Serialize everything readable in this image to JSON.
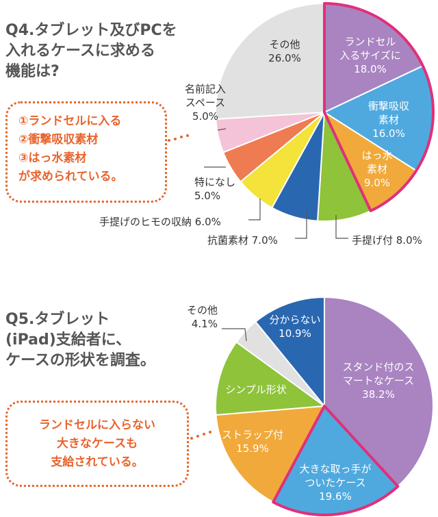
{
  "q4": {
    "title_lines": [
      "Q4.タブレット及びPCを",
      "入れるケースに求める",
      "機能は?"
    ],
    "callout_lines": [
      "①ランドセルに入る",
      "②衝撃吸収素材",
      "③はっ水素材",
      "が求められている。"
    ]
  },
  "q5": {
    "title_lines": [
      "Q5.タブレット",
      "(iPad)支給者に、",
      "ケースの形状を調査。"
    ],
    "callout_lines": [
      "ランドセルに入らない",
      "大きなケースも",
      "支給されている。"
    ]
  },
  "chart_data": [
    {
      "type": "pie",
      "highlight_color": "#e0307a",
      "slices": [
        {
          "label": "ランドセル 入るサイズに",
          "label_lines": [
            "ランドセル",
            "入るサイズに"
          ],
          "value_text": "18.0%",
          "value": 18.0,
          "color": "#a984c1",
          "highlighted": true
        },
        {
          "label": "衝撃吸収 素材",
          "label_lines": [
            "衝撃吸収",
            "素材"
          ],
          "value_text": "16.0%",
          "value": 16.0,
          "color": "#4fa9de",
          "highlighted": true
        },
        {
          "label": "はっ水 素材",
          "label_lines": [
            "はっ水",
            "素材"
          ],
          "value_text": "9.0%",
          "value": 9.0,
          "color": "#f0a93a",
          "highlighted": true
        },
        {
          "label": "手提げ付",
          "label_lines": [
            "手提げ付 8.0%"
          ],
          "value_text": "",
          "value": 8.0,
          "color": "#8ec33a",
          "highlighted": false
        },
        {
          "label": "抗菌素材",
          "label_lines": [
            "抗菌素材 7.0%"
          ],
          "value_text": "",
          "value": 7.0,
          "color": "#2a67b1",
          "highlighted": false
        },
        {
          "label": "手提げのヒモの収納",
          "label_lines": [
            "手提げのヒモの収納 6.0%"
          ],
          "value_text": "",
          "value": 6.0,
          "color": "#f3e33a",
          "highlighted": false
        },
        {
          "label": "特になし",
          "label_lines": [
            "特になし"
          ],
          "value_text": "5.0%",
          "value": 5.0,
          "color": "#ee7b51",
          "highlighted": false
        },
        {
          "label": "名前記入 スペース",
          "label_lines": [
            "名前記入",
            "スペース"
          ],
          "value_text": "5.0%",
          "value": 5.0,
          "color": "#f4c3d7",
          "highlighted": false
        },
        {
          "label": "その他",
          "label_lines": [
            "その他"
          ],
          "value_text": "26.0%",
          "value": 26.0,
          "color": "#e1e1e1",
          "highlighted": false
        }
      ]
    },
    {
      "type": "pie",
      "highlight_color": "#e0307a",
      "slices": [
        {
          "label": "スタンド付のス マートなケース",
          "label_lines": [
            "スタンド付のス",
            "マートなケース"
          ],
          "value_text": "38.2%",
          "value": 38.2,
          "color": "#a984c1",
          "highlighted": false
        },
        {
          "label": "大きな取っ手が ついたケース",
          "label_lines": [
            "大きな取っ手が",
            "ついたケース"
          ],
          "value_text": "19.6%",
          "value": 19.6,
          "color": "#4fa9de",
          "highlighted": true
        },
        {
          "label": "ストラップ付",
          "label_lines": [
            "ストラップ付"
          ],
          "value_text": "15.9%",
          "value": 15.9,
          "color": "#f0a93a",
          "highlighted": false
        },
        {
          "label": "シンプル形状",
          "label_lines": [
            "シンプル形状"
          ],
          "value_text": "",
          "value": 11.3,
          "color": "#8ec33a",
          "highlighted": false
        },
        {
          "label": "その他",
          "label_lines": [
            "その他"
          ],
          "value_text": "4.1%",
          "value": 4.1,
          "color": "#e1e1e1",
          "highlighted": false
        },
        {
          "label": "分からない",
          "label_lines": [
            "分からない"
          ],
          "value_text": "10.9%",
          "value": 10.9,
          "color": "#2a67b1",
          "highlighted": false
        }
      ]
    }
  ]
}
